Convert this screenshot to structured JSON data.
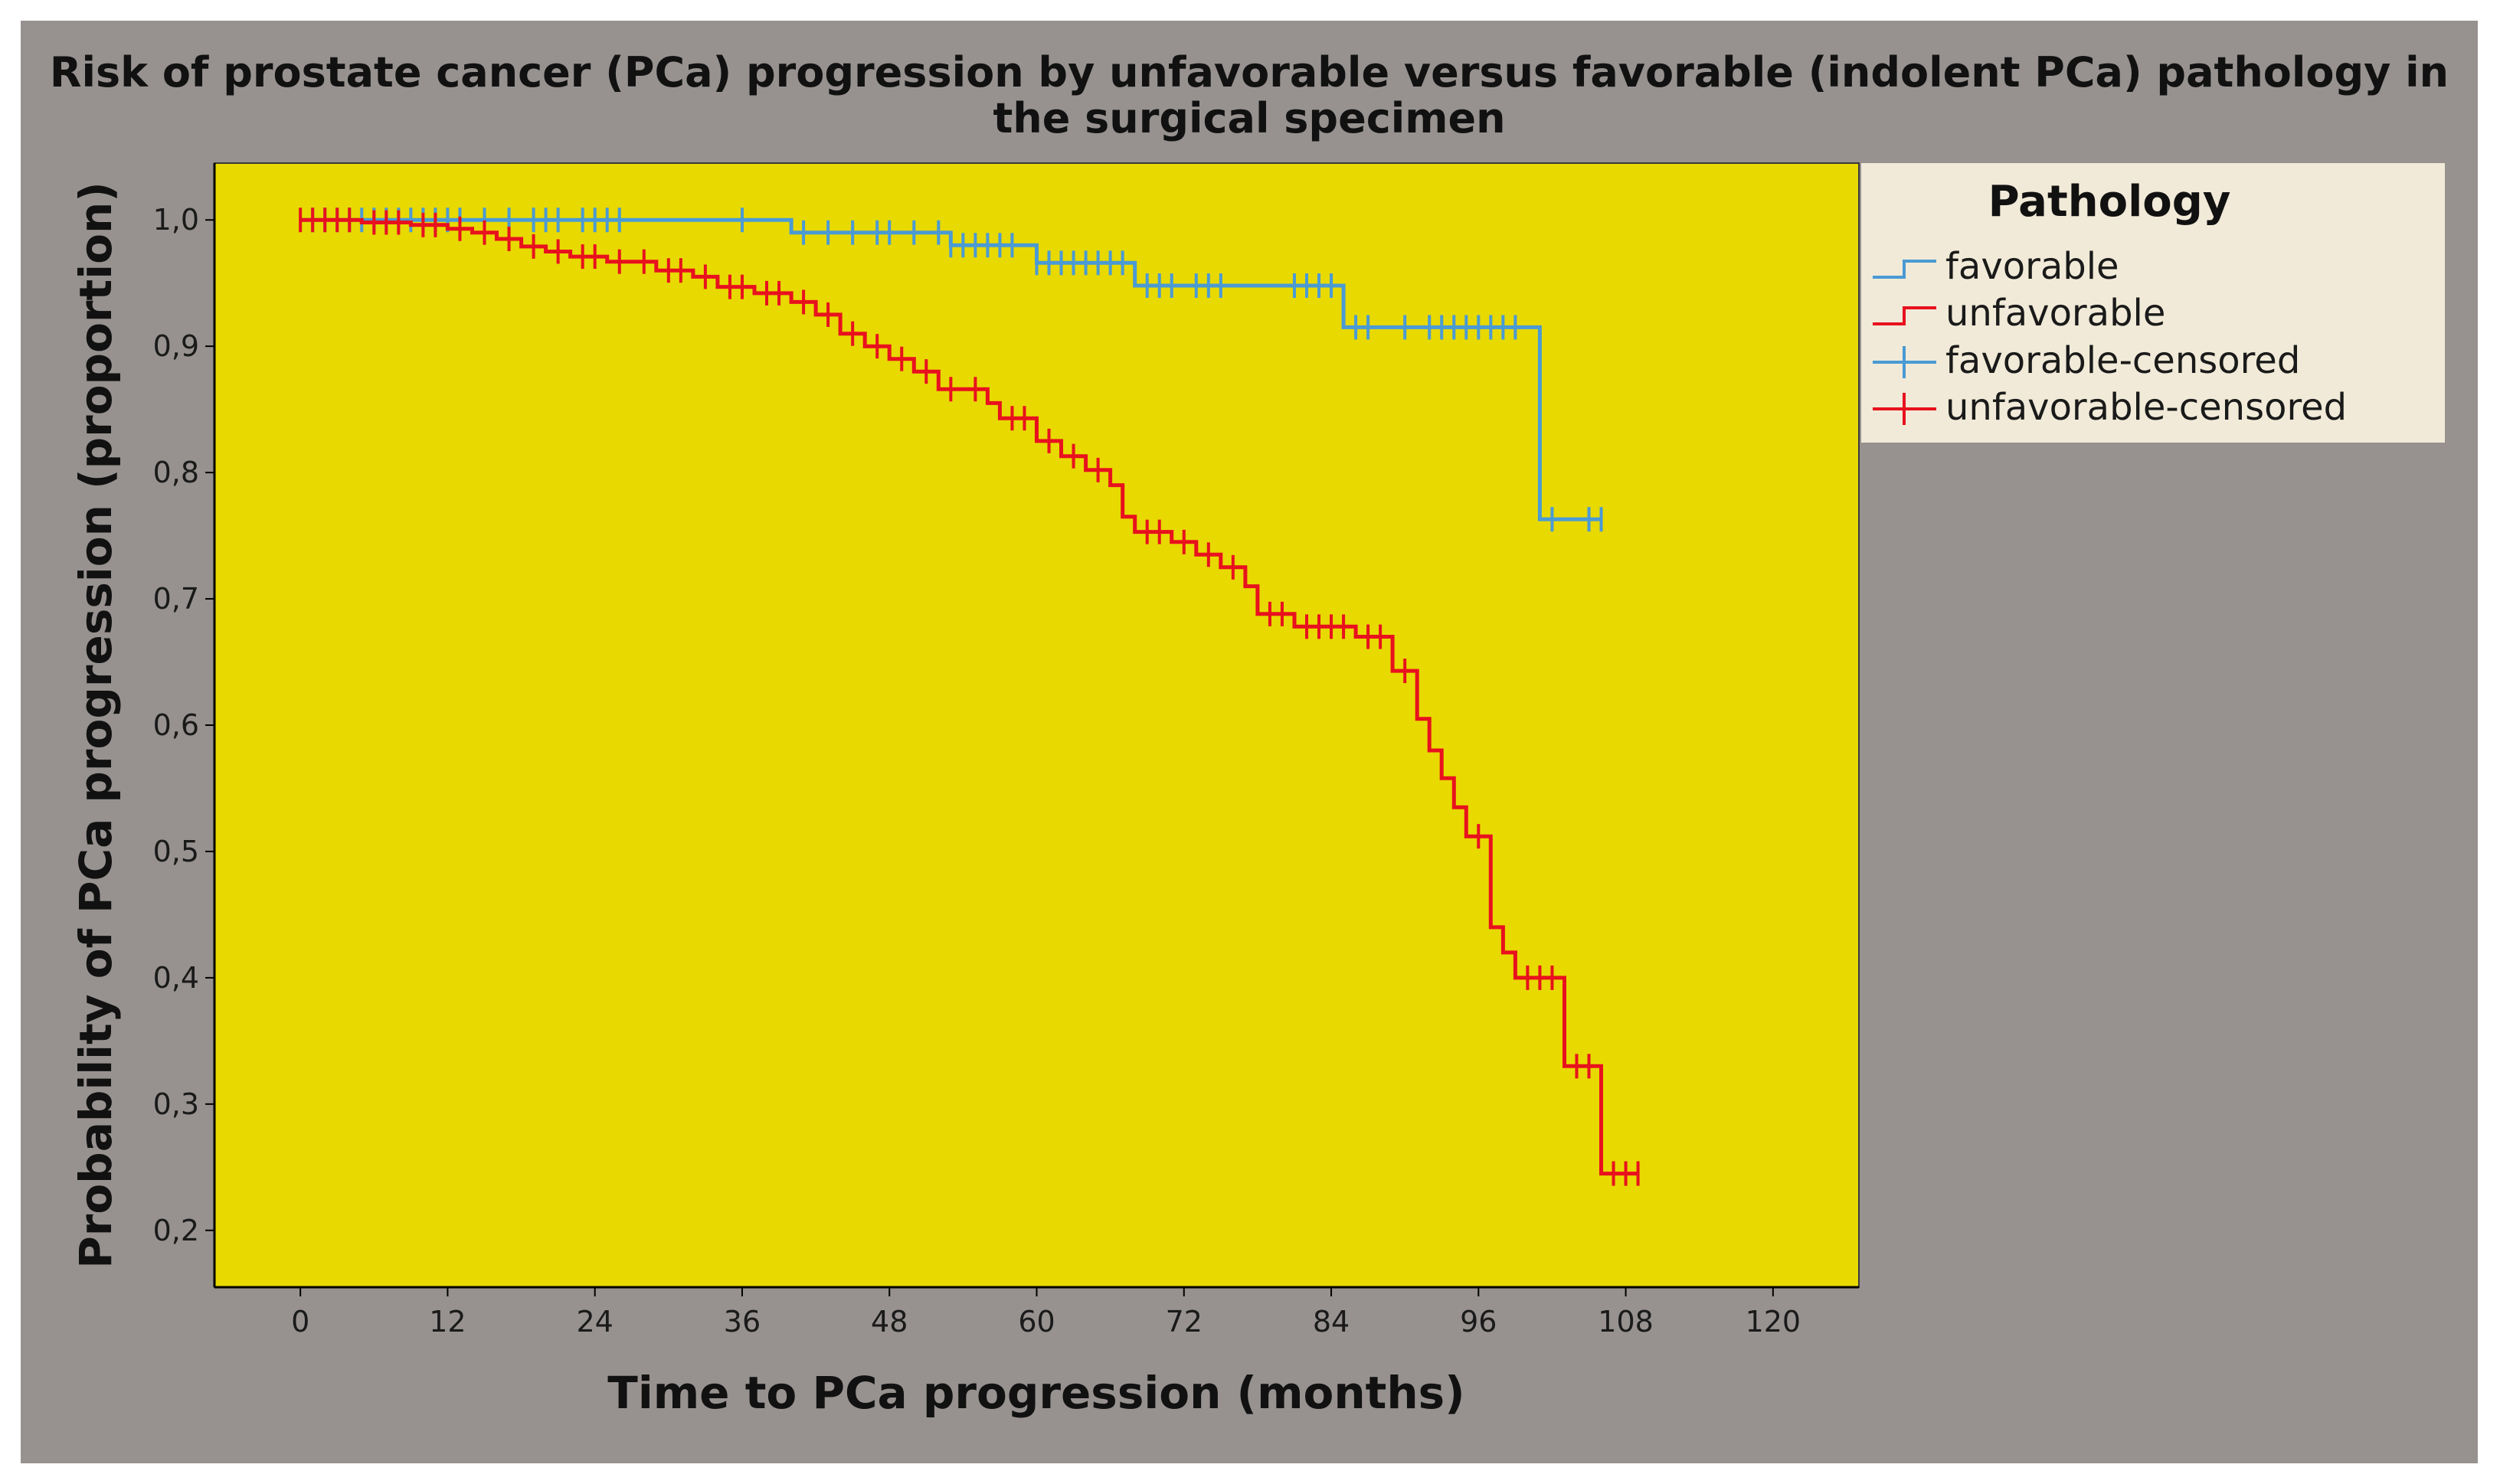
{
  "chart_data": {
    "type": "line",
    "title": "Risk of prostate cancer (PCa) progression by unfavorable versus favorable (indolent PCa) pathology in the surgical specimen",
    "xlabel": "Time to PCa progression (months)",
    "ylabel": "Probability of PCa progression (proportion)",
    "xlim": [
      -7,
      127
    ],
    "ylim": [
      0.155,
      1.045
    ],
    "x_ticks": [
      0,
      12,
      24,
      36,
      48,
      60,
      72,
      84,
      96,
      108,
      120
    ],
    "x_tick_labels": [
      "0",
      "12",
      "24",
      "36",
      "48",
      "60",
      "72",
      "84",
      "96",
      "108",
      "120"
    ],
    "y_ticks": [
      0.2,
      0.3,
      0.4,
      0.5,
      0.6,
      0.7,
      0.8,
      0.9,
      1.0
    ],
    "y_tick_labels": [
      "0,2",
      "0,3",
      "0,4",
      "0,5",
      "0,6",
      "0,7",
      "0,8",
      "0,9",
      "1,0"
    ],
    "grid": false,
    "legend": {
      "title": "Pathology",
      "placement": "right",
      "entries": [
        "favorable",
        "unfavorable",
        "favorable-censored",
        "unfavorable-censored"
      ]
    },
    "colors": {
      "favorable": "#4a9ad4",
      "unfavorable": "#e8111e",
      "plot_bg": "#e8d900",
      "frame_bg": "#979290",
      "legend_bg": "#f1ead8"
    },
    "series": [
      {
        "name": "favorable",
        "step": [
          [
            0,
            1.0
          ],
          [
            40,
            1.0
          ],
          [
            40,
            0.99
          ],
          [
            53,
            0.99
          ],
          [
            53,
            0.98
          ],
          [
            60,
            0.98
          ],
          [
            60,
            0.966
          ],
          [
            68,
            0.966
          ],
          [
            68,
            0.948
          ],
          [
            85,
            0.948
          ],
          [
            85,
            0.915
          ],
          [
            101,
            0.915
          ],
          [
            101,
            0.763
          ],
          [
            106,
            0.763
          ]
        ],
        "censored_x": [
          1,
          2,
          3,
          4,
          5,
          6,
          7,
          8,
          9,
          10,
          11,
          12,
          13,
          15,
          17,
          19,
          20,
          21,
          23,
          24,
          25,
          26,
          36,
          41,
          43,
          45,
          47,
          48,
          50,
          52,
          53,
          54,
          55,
          56,
          57,
          58,
          60,
          61,
          62,
          63,
          64,
          65,
          66,
          67,
          69,
          70,
          71,
          73,
          74,
          75,
          81,
          82,
          83,
          84,
          86,
          87,
          90,
          92,
          93,
          94,
          95,
          96,
          97,
          98,
          99,
          102,
          105,
          106
        ]
      },
      {
        "name": "unfavorable",
        "step": [
          [
            0,
            1.0
          ],
          [
            5,
            1.0
          ],
          [
            5,
            0.998
          ],
          [
            9,
            0.998
          ],
          [
            9,
            0.996
          ],
          [
            12,
            0.996
          ],
          [
            12,
            0.993
          ],
          [
            14,
            0.993
          ],
          [
            14,
            0.99
          ],
          [
            16,
            0.99
          ],
          [
            16,
            0.985
          ],
          [
            18,
            0.985
          ],
          [
            18,
            0.979
          ],
          [
            20,
            0.979
          ],
          [
            20,
            0.975
          ],
          [
            22,
            0.975
          ],
          [
            22,
            0.971
          ],
          [
            25,
            0.971
          ],
          [
            25,
            0.967
          ],
          [
            29,
            0.967
          ],
          [
            29,
            0.96
          ],
          [
            32,
            0.96
          ],
          [
            32,
            0.955
          ],
          [
            34,
            0.955
          ],
          [
            34,
            0.947
          ],
          [
            37,
            0.947
          ],
          [
            37,
            0.942
          ],
          [
            40,
            0.942
          ],
          [
            40,
            0.935
          ],
          [
            42,
            0.935
          ],
          [
            42,
            0.925
          ],
          [
            44,
            0.925
          ],
          [
            44,
            0.91
          ],
          [
            46,
            0.91
          ],
          [
            46,
            0.9
          ],
          [
            48,
            0.9
          ],
          [
            48,
            0.89
          ],
          [
            50,
            0.89
          ],
          [
            50,
            0.88
          ],
          [
            52,
            0.88
          ],
          [
            52,
            0.866
          ],
          [
            56,
            0.866
          ],
          [
            56,
            0.855
          ],
          [
            57,
            0.855
          ],
          [
            57,
            0.843
          ],
          [
            60,
            0.843
          ],
          [
            60,
            0.825
          ],
          [
            62,
            0.825
          ],
          [
            62,
            0.813
          ],
          [
            64,
            0.813
          ],
          [
            64,
            0.802
          ],
          [
            66,
            0.802
          ],
          [
            66,
            0.79
          ],
          [
            67,
            0.79
          ],
          [
            67,
            0.765
          ],
          [
            68,
            0.765
          ],
          [
            68,
            0.753
          ],
          [
            71,
            0.753
          ],
          [
            71,
            0.745
          ],
          [
            73,
            0.745
          ],
          [
            73,
            0.735
          ],
          [
            75,
            0.735
          ],
          [
            75,
            0.725
          ],
          [
            77,
            0.725
          ],
          [
            77,
            0.71
          ],
          [
            78,
            0.71
          ],
          [
            78,
            0.688
          ],
          [
            81,
            0.688
          ],
          [
            81,
            0.678
          ],
          [
            86,
            0.678
          ],
          [
            86,
            0.67
          ],
          [
            89,
            0.67
          ],
          [
            89,
            0.643
          ],
          [
            91,
            0.643
          ],
          [
            91,
            0.605
          ],
          [
            92,
            0.605
          ],
          [
            92,
            0.58
          ],
          [
            93,
            0.58
          ],
          [
            93,
            0.558
          ],
          [
            94,
            0.558
          ],
          [
            94,
            0.535
          ],
          [
            95,
            0.535
          ],
          [
            95,
            0.512
          ],
          [
            97,
            0.512
          ],
          [
            97,
            0.44
          ],
          [
            98,
            0.44
          ],
          [
            98,
            0.42
          ],
          [
            99,
            0.42
          ],
          [
            99,
            0.4
          ],
          [
            103,
            0.4
          ],
          [
            103,
            0.33
          ],
          [
            106,
            0.33
          ],
          [
            106,
            0.245
          ],
          [
            109,
            0.245
          ]
        ],
        "censored_x": [
          0,
          1,
          2,
          3,
          4,
          6,
          7,
          8,
          10,
          11,
          13,
          15,
          17,
          19,
          21,
          23,
          24,
          26,
          28,
          30,
          31,
          33,
          35,
          36,
          38,
          39,
          41,
          43,
          45,
          47,
          49,
          51,
          53,
          55,
          58,
          59,
          61,
          63,
          65,
          69,
          70,
          72,
          74,
          76,
          79,
          80,
          82,
          83,
          84,
          85,
          87,
          88,
          90,
          96,
          100,
          101,
          102,
          104,
          105,
          107,
          108,
          109
        ]
      }
    ]
  }
}
